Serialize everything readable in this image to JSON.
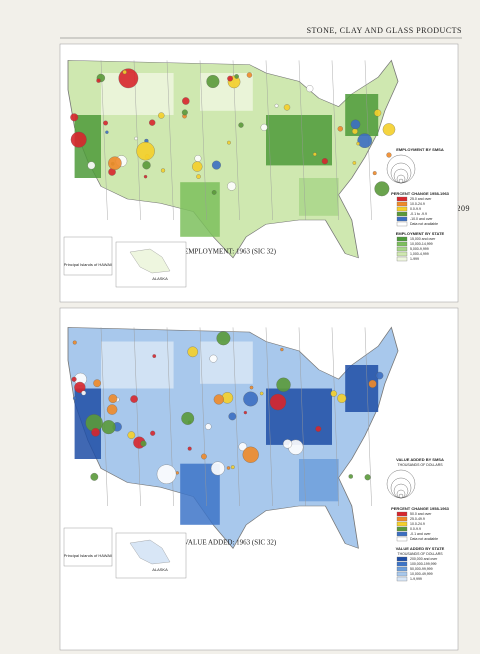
{
  "header": {
    "title": "STONE, CLAY AND GLASS PRODUCTS",
    "page_number": "209"
  },
  "maps": [
    {
      "title": "EMPLOYMENT: 1963 (SIC 32)",
      "inset_labels": [
        "ALASKA",
        "Principal Islands of HAWAII"
      ],
      "legends": [
        {
          "title": "EMPLOYMENT BY SMSA",
          "items": []
        },
        {
          "title": "PERCENT CHANGE 1958-1963",
          "items": [
            "25.0 and over",
            "10.0-24.9",
            "0.0-9.9",
            "-0.1 to -9.9",
            "-10.0 and over",
            "Data not available"
          ]
        },
        {
          "title": "EMPLOYMENT BY STATE",
          "items": [
            "15,000 and over",
            "10,000-14,999",
            "5,000-9,999",
            "1,000-4,999",
            "1-999"
          ]
        }
      ]
    },
    {
      "title": "VALUE ADDED: 1963 (SIC 32)",
      "inset_labels": [
        "ALASKA",
        "Principal Islands of HAWAII"
      ],
      "legends": [
        {
          "title": "VALUE ADDED BY SMSA",
          "subtitle": "THOUSANDS OF DOLLARS",
          "items": []
        },
        {
          "title": "PERCENT CHANGE 1958-1963",
          "items": [
            "50.0 and over",
            "25.0-49.9",
            "10.0-24.9",
            "0.0-9.9",
            "-0.1 and over",
            "Data not available"
          ]
        },
        {
          "title": "VALUE ADDED BY STATE",
          "subtitle": "THOUSANDS OF DOLLARS",
          "items": [
            "200,000 and over",
            "100,000-199,999",
            "50,000-99,999",
            "10,000-49,999",
            "1-9,999"
          ]
        }
      ]
    }
  ]
}
